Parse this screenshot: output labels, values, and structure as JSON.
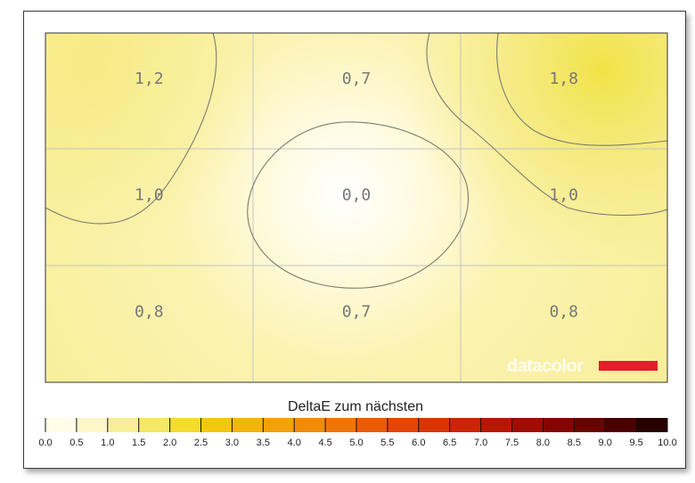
{
  "chart_data": {
    "type": "heatmap",
    "title": "",
    "grid": {
      "rows": 3,
      "cols": 3,
      "gridlines": true
    },
    "cells": [
      [
        "1,2",
        "0,7",
        "1,8"
      ],
      [
        "1,0",
        "0,0",
        "1,0"
      ],
      [
        "0,8",
        "0,7",
        "0,8"
      ]
    ],
    "values": [
      [
        1.2,
        0.7,
        1.8
      ],
      [
        1.0,
        0.0,
        1.0
      ],
      [
        0.8,
        0.7,
        0.8
      ]
    ],
    "contour_levels": [
      0.5,
      1.0,
      1.5
    ],
    "colorbar": {
      "title": "DeltaE zum nächsten",
      "min": 0.0,
      "max": 10.0,
      "step": 0.5,
      "tick_labels": [
        "0.0",
        "0.5",
        "1.0",
        "1.5",
        "2.0",
        "2.5",
        "3.0",
        "3.5",
        "4.0",
        "4.5",
        "5.0",
        "5.5",
        "6.0",
        "6.5",
        "7.0",
        "7.5",
        "8.0",
        "8.5",
        "9.0",
        "9.5",
        "10.0"
      ],
      "colors": [
        "#fffde8",
        "#fcf6c8",
        "#f8ee98",
        "#f6e766",
        "#f5db2c",
        "#f4c70f",
        "#f3b50b",
        "#f2a209",
        "#f18c08",
        "#ef7407",
        "#ea5c06",
        "#e34605",
        "#d93504",
        "#ca2603",
        "#b71802",
        "#a00d02",
        "#840602",
        "#690302",
        "#4c0101",
        "#280000"
      ]
    },
    "brand": {
      "name": "datacolor",
      "accent": "#e0202a"
    }
  }
}
